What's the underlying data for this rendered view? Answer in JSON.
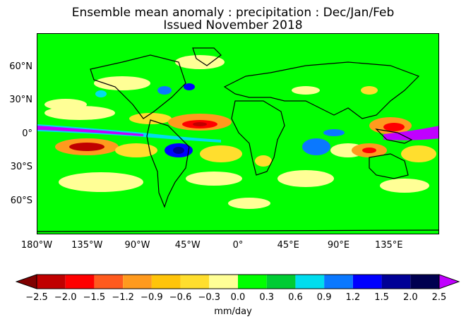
{
  "title": "Ensemble mean anomaly : precipitation : Dec/Jan/Feb",
  "subtitle": "Issued November 2018",
  "map": {
    "lat_labels": [
      "60°N",
      "30°N",
      "0°",
      "30°S",
      "60°S"
    ],
    "lat_values": [
      60,
      30,
      0,
      -30,
      -60
    ],
    "lon_labels": [
      "180°W",
      "135°W",
      "90°W",
      "45°W",
      "0°",
      "45°E",
      "90°E",
      "135°E"
    ],
    "lon_values": [
      -180,
      -135,
      -90,
      -45,
      0,
      45,
      90,
      135
    ]
  },
  "colorbar": {
    "tick_labels": [
      "−2.5",
      "−2.0",
      "−1.5",
      "−1.2",
      "−0.9",
      "−0.6",
      "−0.3",
      "0.0",
      "0.3",
      "0.6",
      "0.9",
      "1.2",
      "1.5",
      "2.0",
      "2.5"
    ],
    "colors": [
      "#c00000",
      "#ff0000",
      "#ff5a1e",
      "#ff9a1e",
      "#ffc40a",
      "#ffde2e",
      "#ffff96",
      "#00ff00",
      "#00cc33",
      "#00ddee",
      "#0a78ff",
      "#0000ff",
      "#000096",
      "#000050"
    ],
    "low_extend_color": "#800000",
    "high_extend_color": "#c000ff",
    "units": "mm/day"
  }
}
